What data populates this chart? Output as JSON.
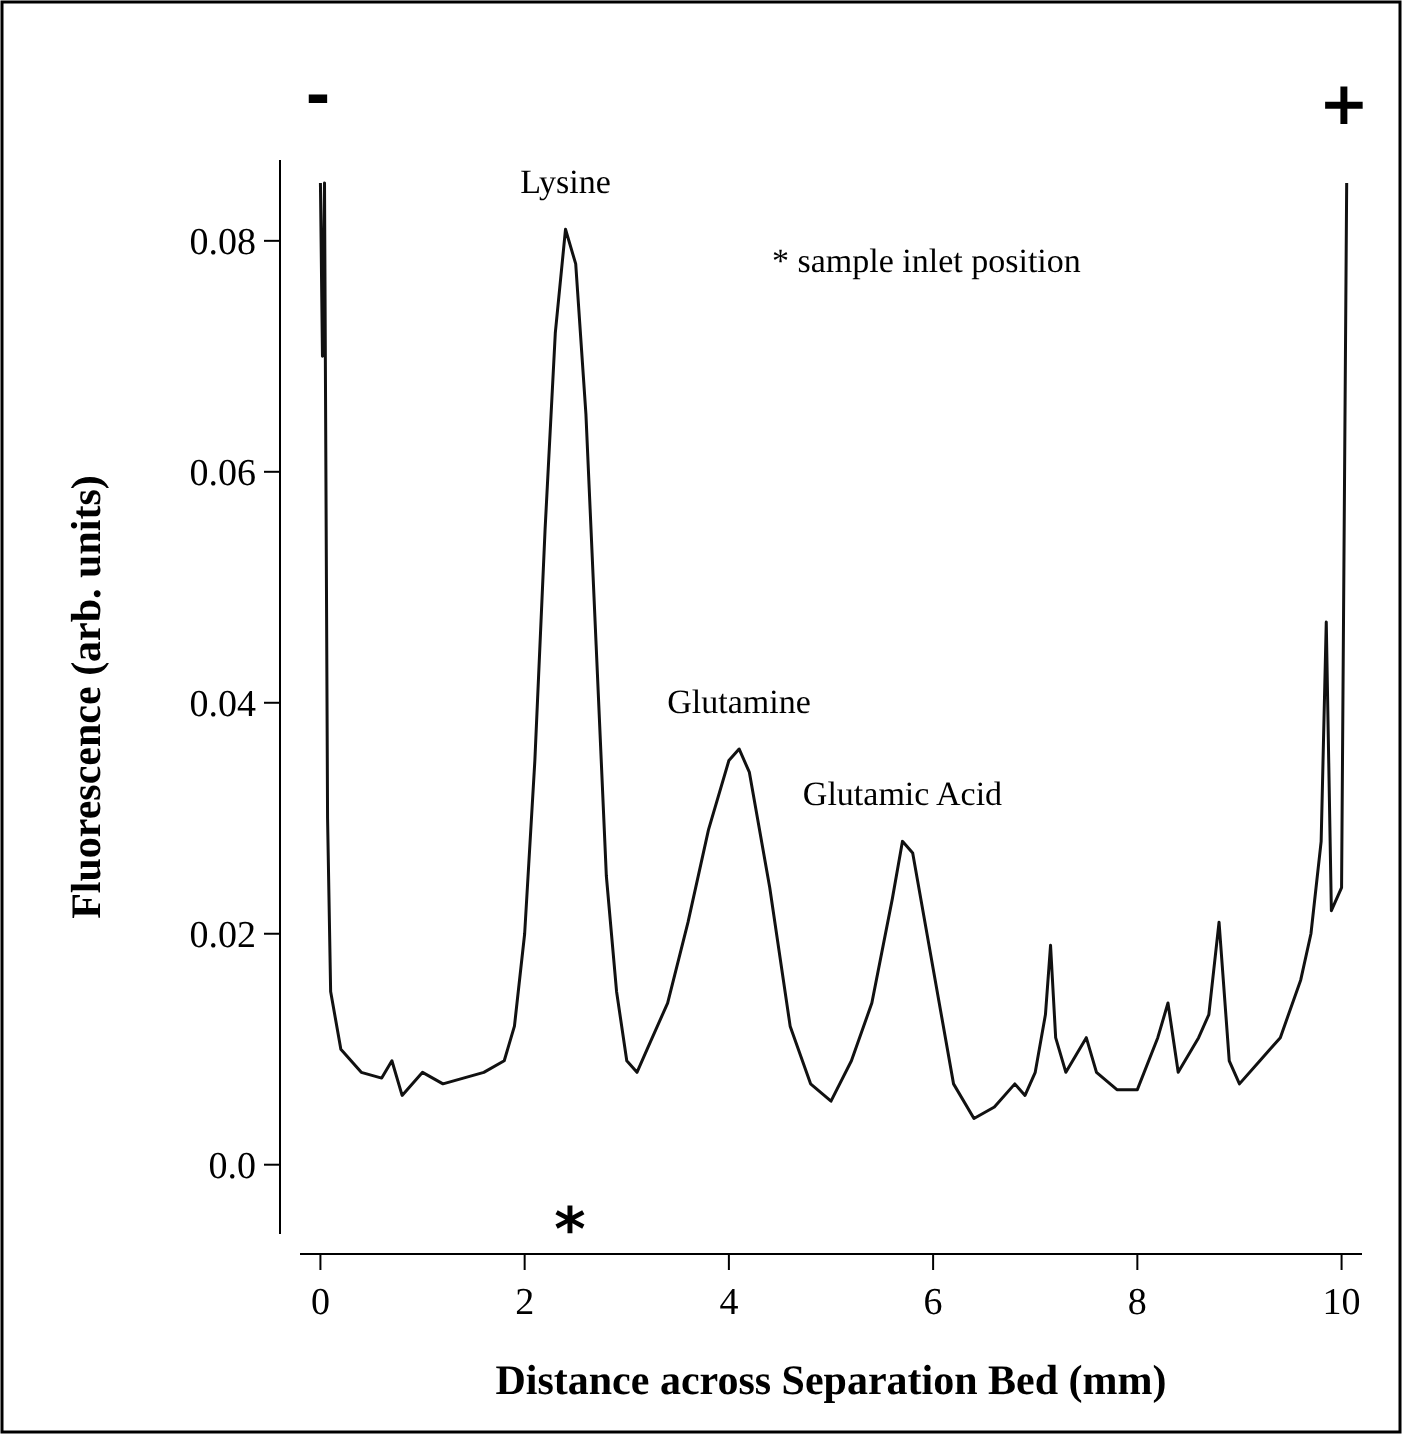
{
  "chart_data": {
    "type": "line",
    "xlabel": "Distance across Separation Bed (mm)",
    "ylabel": "Fluorescence (arb. units)",
    "xlim": [
      -0.2,
      10.2
    ],
    "ylim": [
      -0.006,
      0.087
    ],
    "xticks": [
      0,
      2,
      4,
      6,
      8,
      10
    ],
    "yticks": [
      {
        "value": 0,
        "label": "0.0"
      },
      0.02,
      0.04,
      0.06,
      0.08
    ],
    "grid": false,
    "marker": "none",
    "line_style": "solid",
    "series": [
      {
        "color": "#111111",
        "x": [
          0.0,
          0.02,
          0.04,
          0.07,
          0.1,
          0.2,
          0.4,
          0.6,
          0.7,
          0.8,
          1.0,
          1.2,
          1.4,
          1.6,
          1.8,
          1.9,
          2.0,
          2.1,
          2.2,
          2.3,
          2.4,
          2.5,
          2.6,
          2.7,
          2.8,
          2.9,
          3.0,
          3.1,
          3.2,
          3.4,
          3.6,
          3.8,
          4.0,
          4.1,
          4.2,
          4.4,
          4.6,
          4.8,
          5.0,
          5.2,
          5.4,
          5.6,
          5.7,
          5.8,
          6.0,
          6.2,
          6.4,
          6.6,
          6.8,
          6.9,
          7.0,
          7.1,
          7.15,
          7.2,
          7.3,
          7.5,
          7.6,
          7.8,
          8.0,
          8.2,
          8.3,
          8.4,
          8.6,
          8.7,
          8.8,
          8.9,
          9.0,
          9.2,
          9.4,
          9.6,
          9.7,
          9.8,
          9.85,
          9.9,
          10.0,
          10.05
        ],
        "values": [
          0.085,
          0.07,
          0.085,
          0.03,
          0.015,
          0.01,
          0.008,
          0.0075,
          0.009,
          0.006,
          0.008,
          0.007,
          0.0075,
          0.008,
          0.009,
          0.012,
          0.02,
          0.035,
          0.055,
          0.072,
          0.081,
          0.078,
          0.065,
          0.045,
          0.025,
          0.015,
          0.009,
          0.008,
          0.01,
          0.014,
          0.021,
          0.029,
          0.035,
          0.036,
          0.034,
          0.024,
          0.012,
          0.007,
          0.0055,
          0.009,
          0.014,
          0.023,
          0.028,
          0.027,
          0.017,
          0.007,
          0.004,
          0.005,
          0.007,
          0.006,
          0.008,
          0.013,
          0.019,
          0.011,
          0.008,
          0.011,
          0.008,
          0.0065,
          0.0065,
          0.011,
          0.014,
          0.008,
          0.011,
          0.013,
          0.021,
          0.009,
          0.007,
          0.009,
          0.011,
          0.016,
          0.02,
          0.028,
          0.047,
          0.022,
          0.024,
          0.085
        ]
      }
    ],
    "annotations": [
      {
        "text": "Lysine",
        "x": 2.4,
        "y": 0.081
      },
      {
        "text": "Glutamine",
        "x": 4.1,
        "y": 0.036
      },
      {
        "text": "Glutamic Acid",
        "x": 5.7,
        "y": 0.028
      },
      "*",
      "* sample inlet position",
      "-",
      "+"
    ]
  }
}
